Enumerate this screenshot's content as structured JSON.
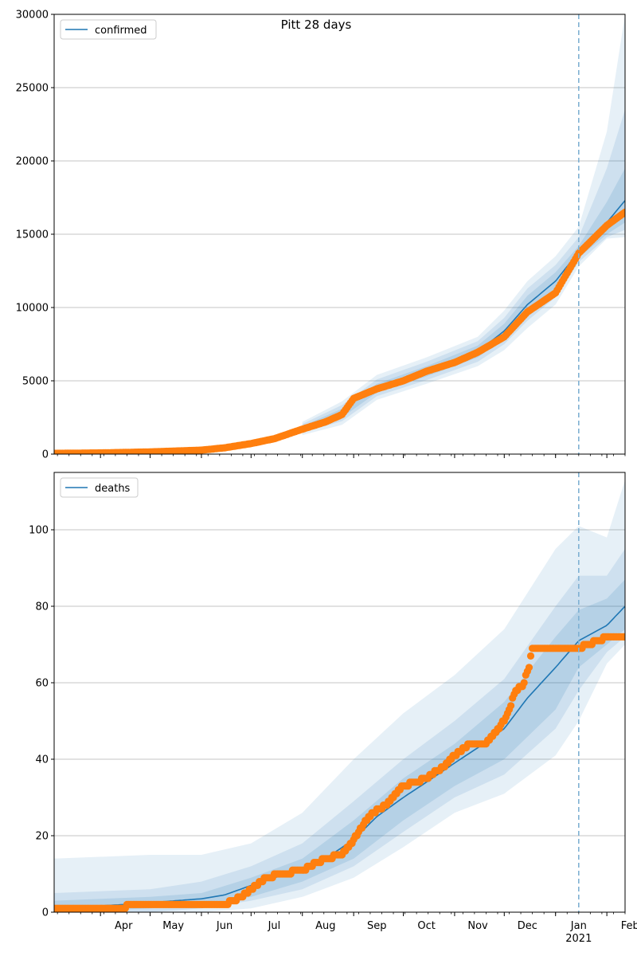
{
  "figure": {
    "title": "Pitt 28 days"
  },
  "colors": {
    "model": "#1f77b4",
    "observed": "#ff7f0e",
    "band": "#1f77b4",
    "forecast_line": "#7fb1d3",
    "grid": "#b0b0b0"
  },
  "chart_data": [
    {
      "type": "line",
      "panel": "top",
      "legend": {
        "label": "confirmed",
        "placement": "top-left"
      },
      "xlim": [
        "2020-03-04",
        "2021-02-12"
      ],
      "ylim": [
        0,
        30000
      ],
      "yticks": [
        0,
        5000,
        10000,
        15000,
        20000,
        25000,
        30000
      ],
      "ytick_labels": [
        "0",
        "5000",
        "10000",
        "15000",
        "20000",
        "25000",
        "30000"
      ],
      "xticks": [],
      "forecast_start": "2021-01-15",
      "grid": "y",
      "model_median": {
        "x": [
          "2020-03-04",
          "2020-04-01",
          "2020-05-01",
          "2020-06-01",
          "2020-06-15",
          "2020-07-01",
          "2020-07-15",
          "2020-08-01",
          "2020-08-15",
          "2020-08-25",
          "2020-09-01",
          "2020-09-15",
          "2020-10-01",
          "2020-10-15",
          "2020-11-01",
          "2020-11-15",
          "2020-12-01",
          "2020-12-15",
          "2021-01-01",
          "2021-01-15",
          "2021-02-01",
          "2021-02-12"
        ],
        "y": [
          50,
          80,
          150,
          280,
          450,
          750,
          1100,
          1750,
          2250,
          2800,
          3850,
          4500,
          5050,
          5650,
          6300,
          7000,
          8400,
          10200,
          11800,
          13800,
          15800,
          17300
        ]
      },
      "band_inner": {
        "x": [
          "2020-08-01",
          "2020-08-25",
          "2020-09-15",
          "2020-10-15",
          "2020-11-15",
          "2020-12-01",
          "2020-12-15",
          "2021-01-01",
          "2021-01-15",
          "2021-02-01",
          "2021-02-12"
        ],
        "lower": [
          1600,
          2500,
          4200,
          5300,
          6600,
          7900,
          9600,
          11200,
          13400,
          15000,
          15800
        ],
        "upper": [
          1900,
          3100,
          4800,
          6000,
          7400,
          8900,
          10800,
          12400,
          14200,
          17200,
          19500
        ]
      },
      "band_middle": {
        "x": [
          "2020-08-01",
          "2020-08-25",
          "2020-09-15",
          "2020-10-15",
          "2020-11-15",
          "2020-12-01",
          "2020-12-15",
          "2021-01-01",
          "2021-01-15",
          "2021-02-01",
          "2021-02-12"
        ],
        "lower": [
          1450,
          2250,
          3950,
          5050,
          6300,
          7500,
          9100,
          10700,
          13100,
          14800,
          15300
        ],
        "upper": [
          2050,
          3350,
          5100,
          6300,
          7700,
          9300,
          11300,
          12900,
          14800,
          19500,
          23500
        ]
      },
      "band_outer": {
        "x": [
          "2020-08-01",
          "2020-08-25",
          "2020-09-15",
          "2020-10-15",
          "2020-11-15",
          "2020-12-01",
          "2020-12-15",
          "2021-01-01",
          "2021-01-15",
          "2021-02-01",
          "2021-02-12"
        ],
        "lower": [
          1300,
          2000,
          3700,
          4800,
          6000,
          7100,
          8600,
          10200,
          12800,
          14700,
          14800
        ],
        "upper": [
          2200,
          3600,
          5400,
          6600,
          8000,
          9800,
          11800,
          13500,
          15500,
          22000,
          30000
        ]
      },
      "observed": {
        "x": [
          "2020-03-04",
          "2020-04-01",
          "2020-05-01",
          "2020-06-01",
          "2020-06-15",
          "2020-07-01",
          "2020-07-15",
          "2020-08-01",
          "2020-08-15",
          "2020-08-25",
          "2020-09-01",
          "2020-09-15",
          "2020-10-01",
          "2020-10-15",
          "2020-11-01",
          "2020-11-15",
          "2020-12-01",
          "2020-12-15",
          "2021-01-01",
          "2021-01-15",
          "2021-02-01",
          "2021-02-12"
        ],
        "y": [
          50,
          80,
          150,
          270,
          430,
          720,
          1050,
          1700,
          2200,
          2700,
          3800,
          4450,
          5000,
          5650,
          6250,
          6950,
          8000,
          9700,
          11000,
          13700,
          15600,
          16500
        ]
      }
    },
    {
      "type": "line",
      "panel": "bottom",
      "legend": {
        "label": "deaths",
        "placement": "top-left"
      },
      "xlim": [
        "2020-03-04",
        "2021-02-12"
      ],
      "ylim": [
        0,
        115
      ],
      "yticks": [
        0,
        20,
        40,
        60,
        80,
        100
      ],
      "ytick_labels": [
        "0",
        "20",
        "40",
        "60",
        "80",
        "100"
      ],
      "xticks": [
        {
          "date": "2020-04-01",
          "label": "Apr"
        },
        {
          "date": "2020-05-01",
          "label": "May"
        },
        {
          "date": "2020-06-01",
          "label": "Jun"
        },
        {
          "date": "2020-07-01",
          "label": "Jul"
        },
        {
          "date": "2020-08-01",
          "label": "Aug"
        },
        {
          "date": "2020-09-01",
          "label": "Sep"
        },
        {
          "date": "2020-10-01",
          "label": "Oct"
        },
        {
          "date": "2020-11-01",
          "label": "Nov"
        },
        {
          "date": "2020-12-01",
          "label": "Dec"
        },
        {
          "date": "2021-01-01",
          "label": "Jan"
        },
        {
          "date": "2021-02-01",
          "label": "Feb"
        }
      ],
      "year_label": "2021",
      "forecast_start": "2021-01-15",
      "grid": "y",
      "model_median": {
        "x": [
          "2020-03-04",
          "2020-04-15",
          "2020-05-01",
          "2020-06-01",
          "2020-06-15",
          "2020-07-01",
          "2020-07-15",
          "2020-08-01",
          "2020-08-15",
          "2020-09-01",
          "2020-09-15",
          "2020-10-01",
          "2020-10-15",
          "2020-11-01",
          "2020-11-15",
          "2020-12-01",
          "2020-12-15",
          "2021-01-01",
          "2021-01-15",
          "2021-02-01",
          "2021-02-12"
        ],
        "y": [
          1,
          2,
          2.5,
          3.5,
          4.5,
          7,
          9,
          11,
          14,
          19,
          25,
          30,
          34,
          39,
          43,
          48,
          56,
          64,
          71,
          75,
          80
        ]
      },
      "band_inner": {
        "x": [
          "2020-03-04",
          "2020-05-01",
          "2020-06-01",
          "2020-07-01",
          "2020-08-01",
          "2020-09-01",
          "2020-10-01",
          "2020-11-01",
          "2020-12-01",
          "2021-01-01",
          "2021-01-15",
          "2021-02-01",
          "2021-02-12"
        ],
        "lower": [
          0,
          1,
          2,
          4,
          8,
          14,
          24,
          33,
          40,
          53,
          64,
          70,
          74
        ],
        "upper": [
          3,
          4,
          5,
          9,
          14,
          24,
          35,
          44,
          55,
          72,
          79,
          82,
          87
        ]
      },
      "band_middle": {
        "x": [
          "2020-03-04",
          "2020-05-01",
          "2020-06-01",
          "2020-07-01",
          "2020-08-01",
          "2020-09-01",
          "2020-10-01",
          "2020-11-01",
          "2020-12-01",
          "2021-01-01",
          "2021-01-15",
          "2021-02-01",
          "2021-02-12"
        ],
        "lower": [
          0,
          0,
          1,
          3,
          6,
          12,
          21,
          30,
          36,
          48,
          58,
          68,
          72
        ],
        "upper": [
          5,
          6,
          8,
          12,
          18,
          29,
          40,
          50,
          61,
          80,
          88,
          88,
          95
        ]
      },
      "band_outer": {
        "x": [
          "2020-03-04",
          "2020-05-01",
          "2020-06-01",
          "2020-07-01",
          "2020-08-01",
          "2020-09-01",
          "2020-10-01",
          "2020-11-01",
          "2020-12-01",
          "2021-01-01",
          "2021-01-15",
          "2021-02-01",
          "2021-02-12"
        ],
        "lower": [
          0,
          0,
          0,
          1,
          4,
          9,
          17,
          26,
          31,
          41,
          50,
          65,
          70
        ],
        "upper": [
          14,
          15,
          15,
          18,
          26,
          40,
          52,
          62,
          74,
          95,
          101,
          98,
          113
        ]
      },
      "observed": {
        "x": [
          "2020-03-04",
          "2020-04-01",
          "2020-04-14",
          "2020-04-20",
          "2020-04-25",
          "2020-05-01",
          "2020-06-01",
          "2020-06-15",
          "2020-06-25",
          "2020-07-01",
          "2020-07-10",
          "2020-07-20",
          "2020-08-01",
          "2020-08-15",
          "2020-08-25",
          "2020-09-01",
          "2020-09-10",
          "2020-09-20",
          "2020-10-01",
          "2020-10-15",
          "2020-10-25",
          "2020-11-01",
          "2020-11-10",
          "2020-11-20",
          "2020-11-28",
          "2020-12-03",
          "2020-12-08",
          "2020-12-12",
          "2020-12-16",
          "2020-12-18",
          "2021-01-01",
          "2021-01-15",
          "2021-02-01",
          "2021-02-12"
        ],
        "y": [
          1,
          1,
          1,
          2,
          2,
          2,
          2,
          2,
          4,
          6,
          9,
          10,
          11,
          14,
          15,
          19,
          25,
          28,
          33,
          35,
          38,
          41,
          44,
          44,
          48,
          52,
          58,
          59,
          64,
          69,
          69,
          69,
          72,
          72
        ]
      }
    }
  ]
}
